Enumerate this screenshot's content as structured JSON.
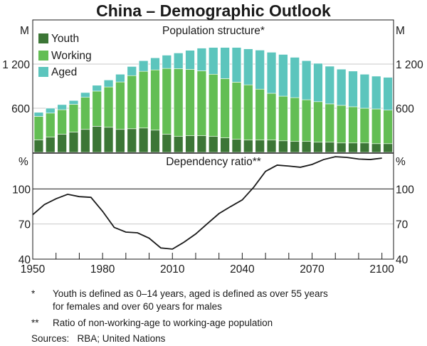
{
  "title": "China – Demographic Outlook",
  "colors": {
    "youth": "#3c7636",
    "working": "#63be54",
    "aged": "#5cc5bd",
    "line": "#1a1a1a"
  },
  "chart_data": [
    {
      "type": "bar",
      "stacked": true,
      "title": "Population structure*",
      "unit": "M",
      "ylim": [
        0,
        1800
      ],
      "yticks": [
        600,
        1200
      ],
      "ytick_labels": [
        "600",
        "1 200"
      ],
      "grid": true,
      "legend_placement": "top-left",
      "x": [
        1950,
        1955,
        1960,
        1965,
        1970,
        1975,
        1980,
        1985,
        1990,
        1995,
        2000,
        2005,
        2010,
        2015,
        2020,
        2025,
        2030,
        2035,
        2040,
        2045,
        2050,
        2055,
        2060,
        2065,
        2070,
        2075,
        2080,
        2085,
        2090,
        2095,
        2100
      ],
      "series": [
        {
          "name": "Youth",
          "values": [
            170,
            207,
            246,
            275,
            312,
            354,
            341,
            312,
            321,
            331,
            302,
            246,
            216,
            226,
            226,
            216,
            197,
            177,
            167,
            167,
            167,
            157,
            148,
            148,
            138,
            138,
            128,
            128,
            128,
            118,
            118
          ]
        },
        {
          "name": "Working",
          "values": [
            319,
            327,
            334,
            378,
            436,
            479,
            548,
            645,
            722,
            771,
            819,
            895,
            922,
            902,
            882,
            846,
            806,
            777,
            751,
            692,
            636,
            607,
            596,
            567,
            551,
            521,
            511,
            492,
            472,
            472,
            456
          ]
        },
        {
          "name": "Aged",
          "values": [
            55,
            66,
            69,
            52,
            65,
            79,
            95,
            105,
            124,
            144,
            164,
            180,
            213,
            259,
            309,
            364,
            423,
            472,
            489,
            531,
            558,
            567,
            548,
            531,
            521,
            512,
            492,
            485,
            462,
            446,
            446
          ]
        }
      ]
    },
    {
      "type": "line",
      "title": "Dependency ratio**",
      "unit": "%",
      "ylim": [
        40,
        130
      ],
      "yticks": [
        40,
        70,
        100
      ],
      "ytick_labels": [
        "40",
        "70",
        "100"
      ],
      "grid": true,
      "xlim": [
        1950,
        2105
      ],
      "xtick_labels": [
        "1950",
        "1980",
        "2010",
        "2040",
        "2070",
        "2100"
      ],
      "x": [
        1950,
        1955,
        1960,
        1965,
        1970,
        1975,
        1980,
        1985,
        1990,
        1995,
        2000,
        2005,
        2010,
        2015,
        2020,
        2025,
        2030,
        2035,
        2040,
        2045,
        2050,
        2055,
        2060,
        2065,
        2070,
        2075,
        2080,
        2085,
        2090,
        2095,
        2100
      ],
      "values": [
        78,
        86.6,
        91.6,
        95.4,
        93.4,
        92.8,
        80.9,
        67.1,
        63.1,
        62.5,
        57.9,
        49.6,
        48.6,
        54.5,
        61.5,
        70.3,
        78.9,
        84.9,
        90.6,
        101.6,
        115,
        120.3,
        119.5,
        118.5,
        120.9,
        125.1,
        127.5,
        126.9,
        125.5,
        125.1,
        126.3
      ]
    }
  ],
  "notes": [
    {
      "mark": "*",
      "text": "Youth is defined as 0–14 years, aged is defined as over 55 years",
      "text2": "for females and over 60 years for males"
    },
    {
      "mark": "**",
      "text": "Ratio of non-working-age to working-age population"
    }
  ],
  "sources": "Sources:   RBA; United Nations"
}
